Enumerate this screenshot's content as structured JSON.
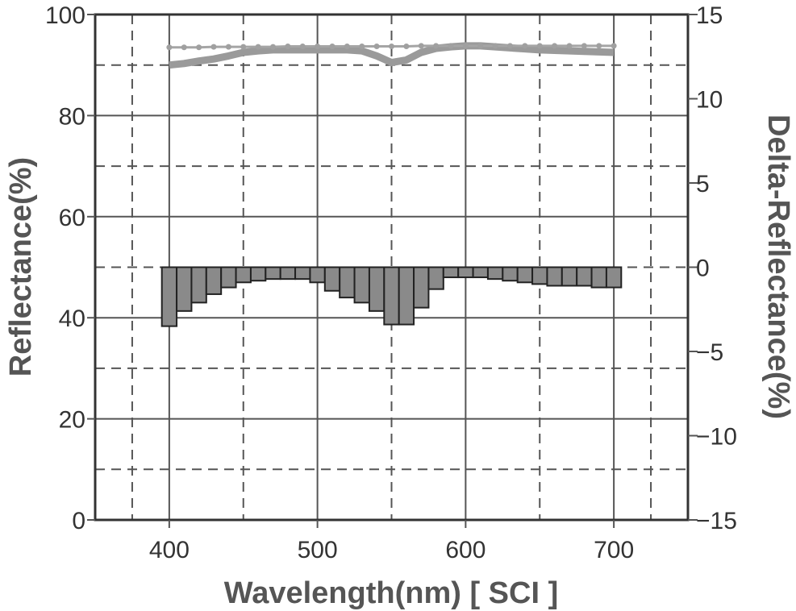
{
  "chart_data": {
    "type": "bar+line",
    "title": "",
    "xlabel": "Wavelength(nm) [ SCI ]",
    "ylabel_left": "Reflectance(%)",
    "ylabel_right": "Delta-Reflectance(%)",
    "xlim": [
      350,
      750
    ],
    "ylim_left": [
      0,
      100
    ],
    "ylim_right": [
      -15,
      15
    ],
    "x_ticks": [
      400,
      500,
      600,
      700
    ],
    "y_ticks_left": [
      0,
      20,
      40,
      60,
      80,
      100
    ],
    "y_ticks_right": [
      -15,
      -10,
      -5,
      0,
      5,
      10,
      15
    ],
    "grid": "solid at major ticks, dashed between",
    "series": [
      {
        "axis": "left",
        "style": "thick line",
        "x": [
          400,
          410,
          420,
          430,
          440,
          450,
          460,
          470,
          480,
          490,
          500,
          510,
          520,
          530,
          540,
          550,
          560,
          570,
          580,
          590,
          600,
          610,
          620,
          630,
          640,
          650,
          660,
          670,
          680,
          690,
          700
        ],
        "values": [
          90.0,
          90.3,
          90.8,
          91.2,
          91.8,
          92.5,
          92.8,
          93.0,
          93.0,
          93.0,
          93.0,
          93.0,
          93.0,
          92.8,
          91.8,
          90.5,
          91.0,
          92.5,
          93.3,
          93.6,
          93.8,
          93.8,
          93.6,
          93.4,
          93.2,
          93.0,
          92.9,
          92.8,
          92.7,
          92.6,
          92.5
        ]
      },
      {
        "axis": "left",
        "style": "thin line with markers",
        "x": [
          400,
          410,
          420,
          430,
          440,
          450,
          460,
          470,
          480,
          490,
          500,
          510,
          520,
          530,
          540,
          550,
          560,
          570,
          580,
          590,
          600,
          610,
          620,
          630,
          640,
          650,
          660,
          670,
          680,
          690,
          700
        ],
        "values": [
          93.5,
          93.5,
          93.5,
          93.6,
          93.6,
          93.6,
          93.6,
          93.6,
          93.7,
          93.7,
          93.7,
          93.7,
          93.7,
          93.7,
          93.7,
          93.7,
          93.7,
          93.8,
          93.8,
          93.8,
          93.8,
          93.8,
          93.8,
          93.8,
          93.8,
          93.8,
          93.8,
          93.8,
          93.8,
          93.8,
          93.8
        ]
      },
      {
        "axis": "right",
        "style": "bars",
        "x": [
          400,
          410,
          420,
          430,
          440,
          450,
          460,
          470,
          480,
          490,
          500,
          510,
          520,
          530,
          540,
          550,
          560,
          570,
          580,
          590,
          600,
          610,
          620,
          630,
          640,
          650,
          660,
          670,
          680,
          690,
          700
        ],
        "values": [
          -3.5,
          -2.6,
          -2.1,
          -1.6,
          -1.2,
          -0.9,
          -0.8,
          -0.7,
          -0.7,
          -0.7,
          -0.9,
          -1.4,
          -1.8,
          -2.1,
          -2.6,
          -3.4,
          -3.4,
          -2.4,
          -1.3,
          -0.6,
          -0.6,
          -0.6,
          -0.7,
          -0.8,
          -0.9,
          -1.0,
          -1.1,
          -1.1,
          -1.1,
          -1.2,
          -1.2
        ]
      }
    ]
  }
}
